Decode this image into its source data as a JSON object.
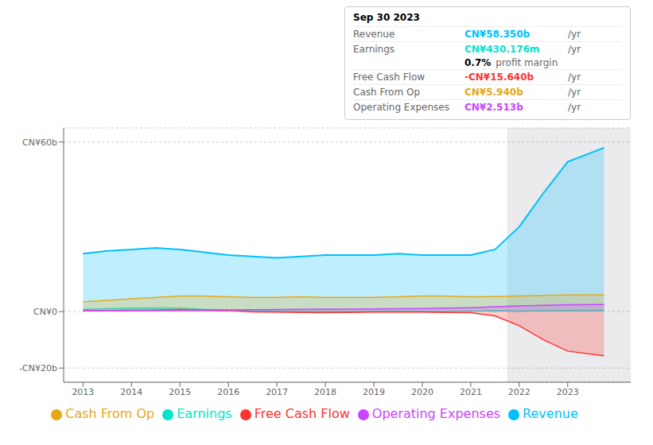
{
  "chart_data": {
    "type": "area",
    "x": [
      2013,
      2013.5,
      2014,
      2014.5,
      2015,
      2015.5,
      2016,
      2016.5,
      2017,
      2017.5,
      2018,
      2018.5,
      2019,
      2019.5,
      2020,
      2020.5,
      2021,
      2021.5,
      2022,
      2022.5,
      2023,
      2023.75
    ],
    "series": [
      {
        "name": "Revenue",
        "color": "#00bfff",
        "values": [
          20.5,
          21.5,
          22,
          22.5,
          22,
          21,
          20,
          19.5,
          19,
          19.5,
          20,
          20,
          20,
          20.5,
          20,
          20,
          20,
          22,
          30,
          42,
          53,
          58
        ]
      },
      {
        "name": "Earnings",
        "color": "#00e5cc",
        "values": [
          0.8,
          1.0,
          1.2,
          1.3,
          1.2,
          0.8,
          0.5,
          0.3,
          0.2,
          0.1,
          0.05,
          0.05,
          0.1,
          0.15,
          0.1,
          0.1,
          0.2,
          0.3,
          0.2,
          0.3,
          0.4,
          0.43
        ]
      },
      {
        "name": "Free Cash Flow",
        "color": "#ff3333",
        "values": [
          0.3,
          0.4,
          0.5,
          0.5,
          0.8,
          0.5,
          0.3,
          -0.1,
          -0.2,
          -0.3,
          -0.4,
          -0.3,
          -0.2,
          -0.2,
          -0.2,
          -0.3,
          -0.4,
          -1.5,
          -5,
          -10,
          -14,
          -15.64
        ]
      },
      {
        "name": "Cash From Op",
        "color": "#e6a817",
        "values": [
          3.5,
          4.0,
          4.5,
          5.0,
          5.5,
          5.5,
          5.2,
          5.0,
          5.0,
          5.2,
          5.0,
          5.0,
          5.0,
          5.2,
          5.5,
          5.5,
          5.2,
          5.3,
          5.5,
          5.7,
          5.9,
          5.94
        ]
      },
      {
        "name": "Operating Expenses",
        "color": "#cc44ff",
        "values": [
          0.3,
          0.35,
          0.4,
          0.45,
          0.5,
          0.55,
          0.6,
          0.65,
          0.7,
          0.8,
          0.85,
          0.9,
          0.95,
          1.0,
          1.1,
          1.2,
          1.4,
          1.7,
          2.0,
          2.2,
          2.4,
          2.513
        ]
      }
    ],
    "xlim": [
      2012.6,
      2024.3
    ],
    "xticks": [
      2013,
      2014,
      2015,
      2016,
      2017,
      2018,
      2019,
      2020,
      2021,
      2022,
      2023
    ],
    "ylim": [
      -25,
      65
    ],
    "yticks": [
      {
        "value": -20,
        "label": "-CN¥20b"
      },
      {
        "value": 0,
        "label": "CN¥0"
      },
      {
        "value": 60,
        "label": "CN¥60b"
      }
    ],
    "grid": true,
    "legend": "bottom",
    "highlight_x": [
      2021.75,
      2024.3
    ],
    "annotations": [
      [
        "Sep 30 2023"
      ],
      [
        "Revenue",
        "CN¥58.350b",
        "/yr"
      ],
      [
        "Earnings",
        "CN¥430.176m",
        "/yr"
      ],
      [
        "0.7%",
        "profit margin"
      ],
      [
        "Free Cash Flow",
        "-CN¥15.640b",
        "/yr"
      ],
      [
        "Cash From Op",
        "CN¥5.940b",
        "/yr"
      ],
      [
        "Operating Expenses",
        "CN¥2.513b",
        "/yr"
      ]
    ]
  }
}
